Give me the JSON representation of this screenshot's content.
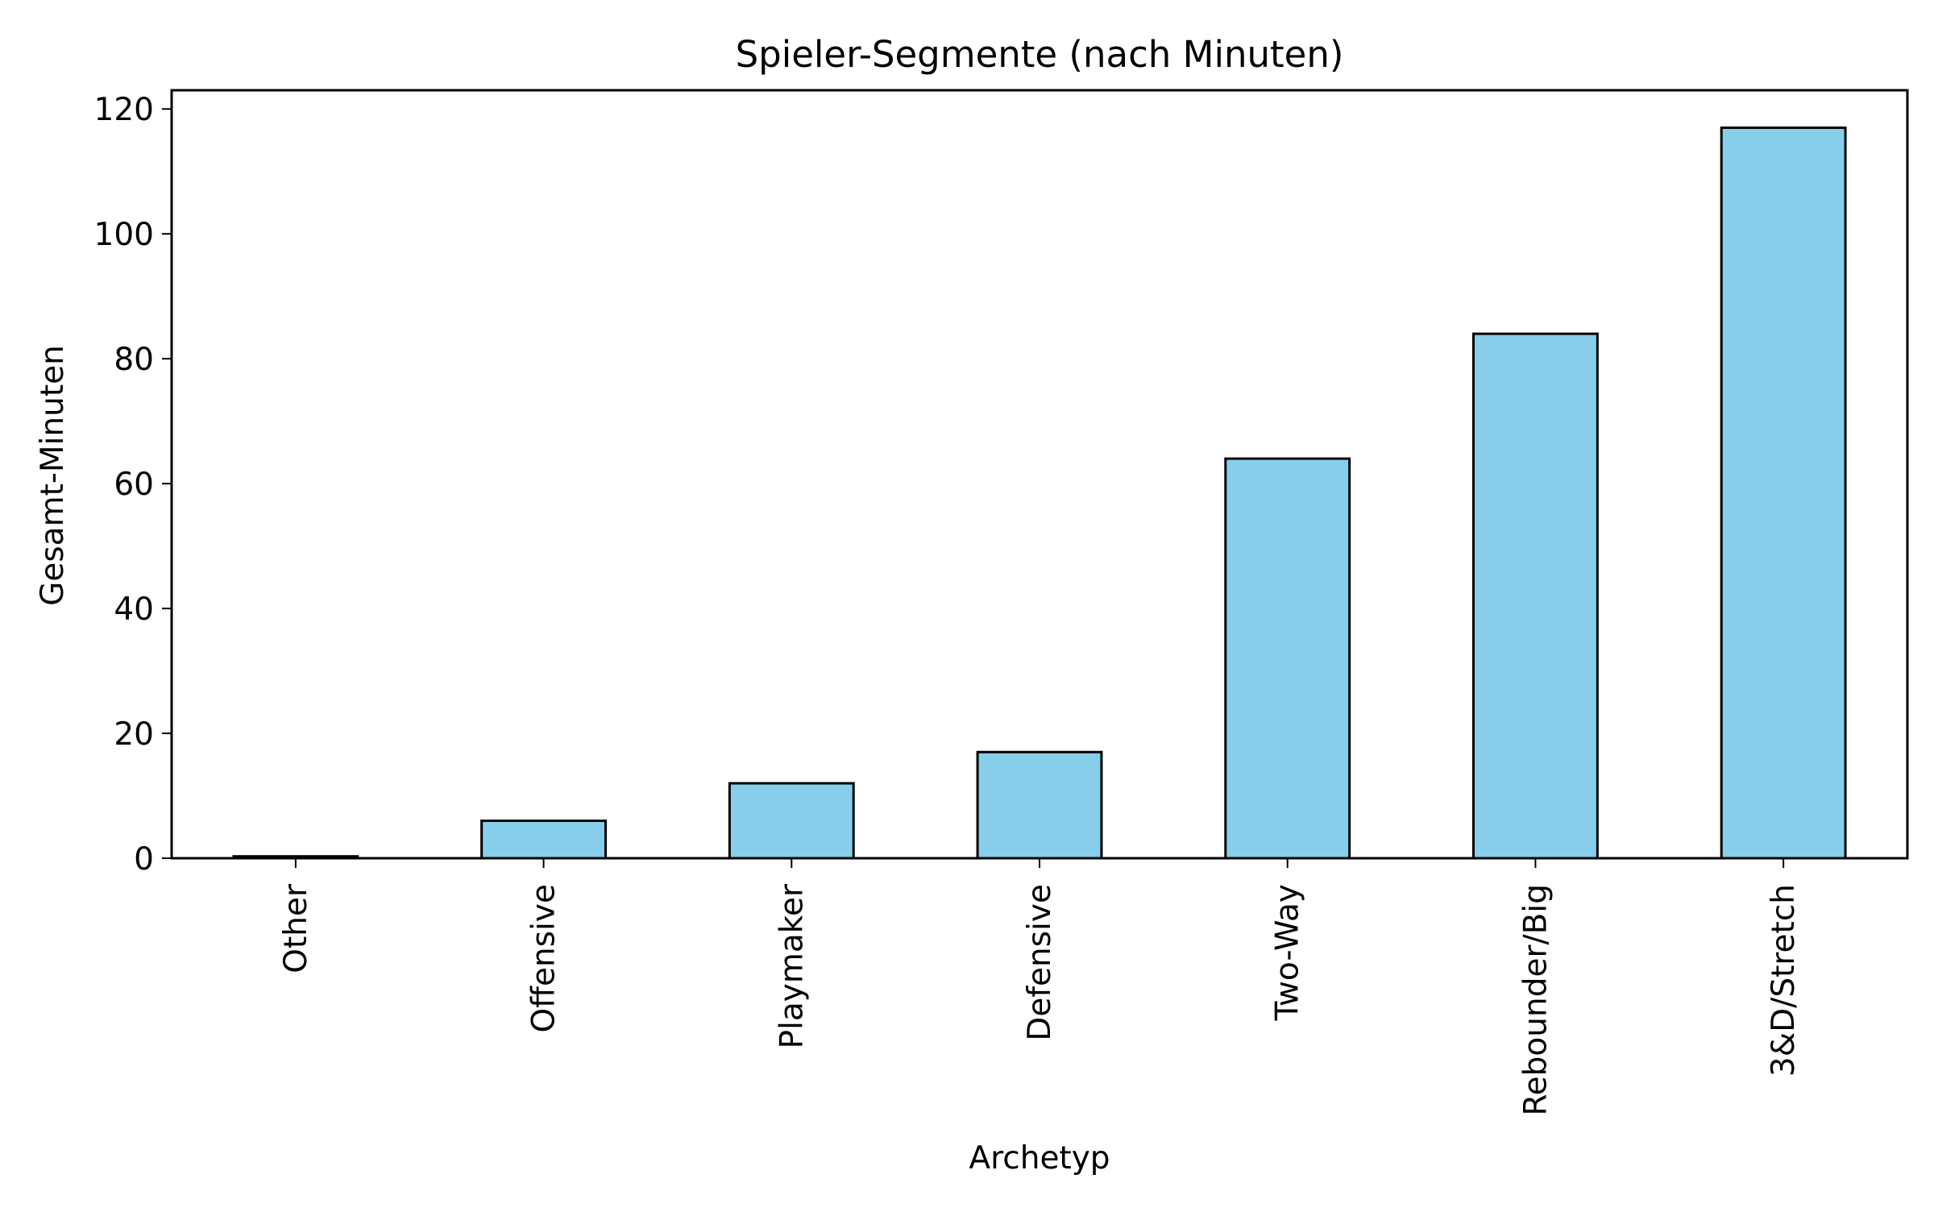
{
  "chart_data": {
    "type": "bar",
    "title": "Spieler-Segmente (nach Minuten)",
    "xlabel": "Archetyp",
    "ylabel": "Gesamt-Minuten",
    "categories": [
      "Other",
      "Offensive",
      "Playmaker",
      "Defensive",
      "Two-Way",
      "Rebounder/Big",
      "3&D/Stretch"
    ],
    "values": [
      0.3,
      6,
      12,
      17,
      64,
      84,
      117
    ],
    "ylim": [
      0,
      123
    ],
    "yticks": [
      0,
      20,
      40,
      60,
      80,
      100,
      120
    ],
    "bar_color": "#87ceeb",
    "edge_color": "#000000",
    "grid": false,
    "legend": "none"
  }
}
